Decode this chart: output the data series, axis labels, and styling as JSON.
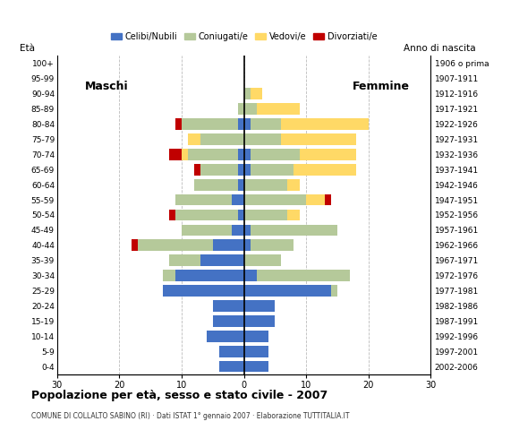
{
  "age_groups": [
    "100+",
    "95-99",
    "90-94",
    "85-89",
    "80-84",
    "75-79",
    "70-74",
    "65-69",
    "60-64",
    "55-59",
    "50-54",
    "45-49",
    "40-44",
    "35-39",
    "30-34",
    "25-29",
    "20-24",
    "15-19",
    "10-14",
    "5-9",
    "0-4"
  ],
  "birth_years": [
    "1906 o prima",
    "1907-1911",
    "1912-1916",
    "1917-1921",
    "1922-1926",
    "1927-1931",
    "1932-1936",
    "1937-1941",
    "1942-1946",
    "1947-1951",
    "1952-1956",
    "1957-1961",
    "1962-1966",
    "1967-1971",
    "1972-1976",
    "1977-1981",
    "1982-1986",
    "1987-1991",
    "1992-1996",
    "1997-2001",
    "2002-2006"
  ],
  "males": {
    "celibi": [
      0,
      0,
      0,
      0,
      1,
      0,
      1,
      1,
      1,
      2,
      1,
      2,
      5,
      7,
      11,
      13,
      5,
      5,
      6,
      4,
      4
    ],
    "coniugati": [
      0,
      0,
      0,
      1,
      9,
      7,
      8,
      6,
      7,
      9,
      10,
      8,
      12,
      5,
      2,
      0,
      0,
      0,
      0,
      0,
      0
    ],
    "vedovi": [
      0,
      0,
      0,
      0,
      0,
      2,
      1,
      0,
      0,
      0,
      0,
      0,
      0,
      0,
      0,
      0,
      0,
      0,
      0,
      0,
      0
    ],
    "divorziati": [
      0,
      0,
      0,
      0,
      1,
      0,
      2,
      1,
      0,
      0,
      1,
      0,
      1,
      0,
      0,
      0,
      0,
      0,
      0,
      0,
      0
    ]
  },
  "females": {
    "nubili": [
      0,
      0,
      0,
      0,
      1,
      0,
      1,
      1,
      0,
      0,
      0,
      1,
      1,
      0,
      2,
      14,
      5,
      5,
      4,
      4,
      4
    ],
    "coniugate": [
      0,
      0,
      1,
      2,
      5,
      6,
      8,
      7,
      7,
      10,
      7,
      14,
      7,
      6,
      15,
      1,
      0,
      0,
      0,
      0,
      0
    ],
    "vedove": [
      0,
      0,
      2,
      7,
      14,
      12,
      9,
      10,
      2,
      3,
      2,
      0,
      0,
      0,
      0,
      0,
      0,
      0,
      0,
      0,
      0
    ],
    "divorziate": [
      0,
      0,
      0,
      0,
      0,
      0,
      0,
      0,
      0,
      1,
      0,
      0,
      0,
      0,
      0,
      0,
      0,
      0,
      0,
      0,
      0
    ]
  },
  "colors": {
    "celibi": "#4472c4",
    "coniugati": "#b5c99a",
    "vedovi": "#ffd966",
    "divorziati": "#c00000"
  },
  "legend_labels": [
    "Celibi/Nubili",
    "Coniugati/e",
    "Vedovi/e",
    "Divorziati/e"
  ],
  "title": "Popolazione per età, sesso e stato civile - 2007",
  "subtitle": "COMUNE DI COLLALTO SABINO (RI) · Dati ISTAT 1° gennaio 2007 · Elaborazione TUTTITALIA.IT",
  "ylabel_left": "Età",
  "ylabel_right": "Anno di nascita",
  "xlim": 30,
  "background": "#ffffff"
}
